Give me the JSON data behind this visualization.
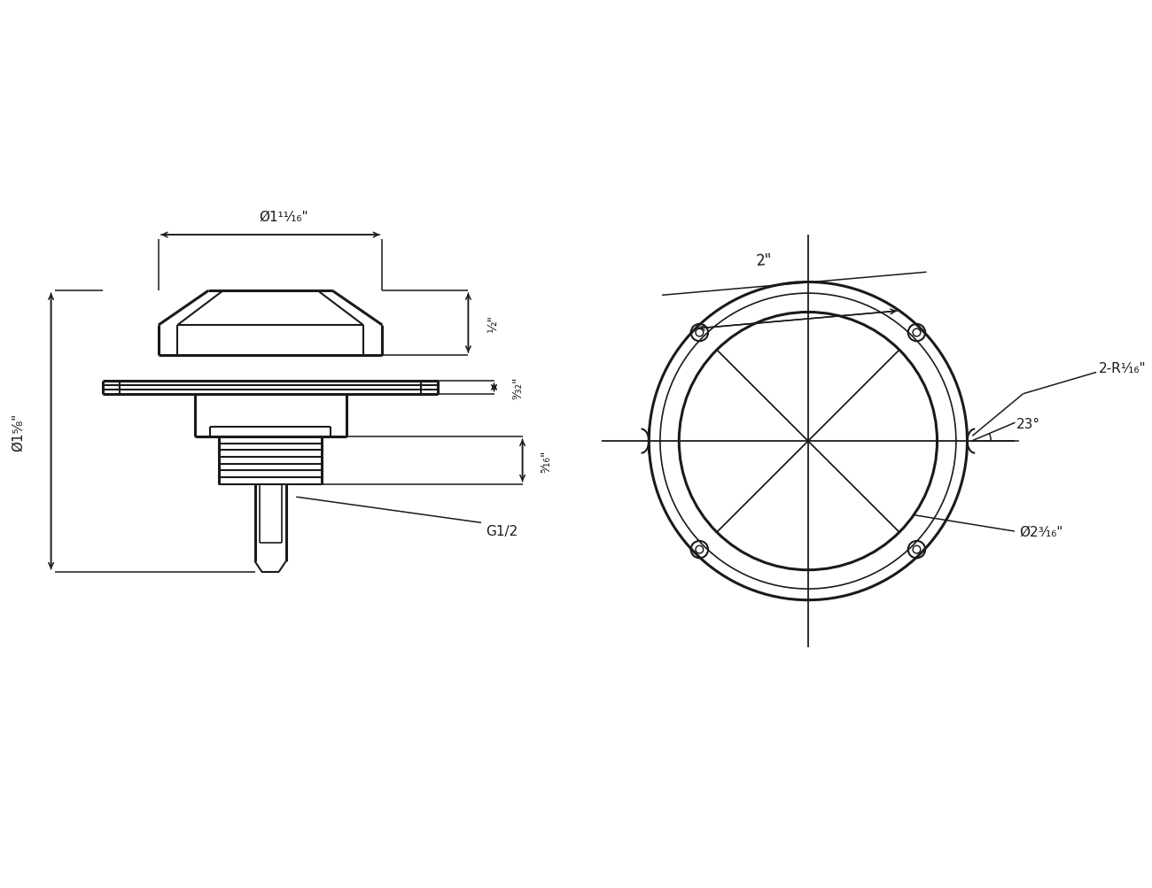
{
  "bg_color": "#ffffff",
  "line_color": "#1a1a1a",
  "lw_thick": 2.2,
  "lw_medium": 1.5,
  "lw_dim": 1.1,
  "labels": {
    "phi_1_5_8": "Ø1⁵⁄₈\"",
    "phi_1_11_16": "Ø1¹¹⁄₁₆\"",
    "half": "½\"",
    "nine_32": "⁹⁄₃₂\"",
    "five_16": "⁵⁄₁₆\"",
    "G_1_2": "G1/2",
    "dim_2": "2\"",
    "phi_2_3_16": "Ø2³⁄₁₆\"",
    "two_R_1_16": "2-R¹⁄₁₆\"",
    "angle_23": "23°"
  }
}
